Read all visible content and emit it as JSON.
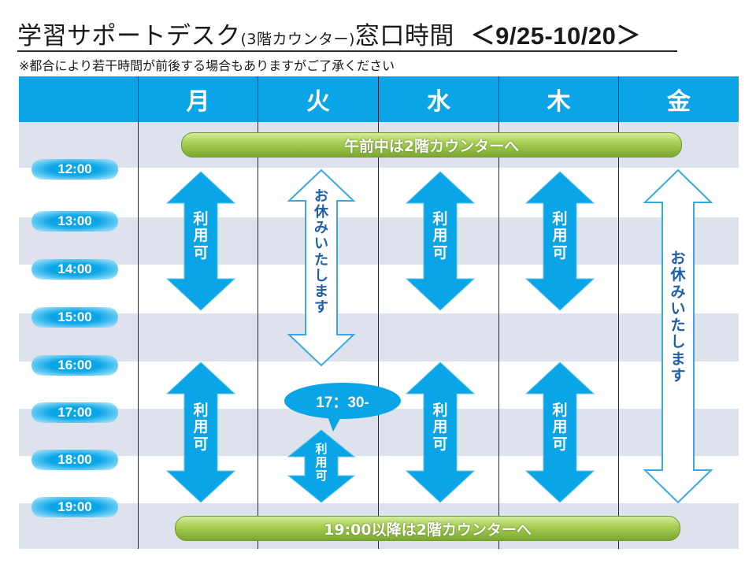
{
  "title": {
    "main": "学習サポートデスク",
    "paren": "(3階カウンター)",
    "suffix": "窓口時間",
    "range": "＜9/25-10/20＞"
  },
  "note": "※都合により若干時間が前後する場合もありますがご了承ください",
  "days": [
    "月",
    "火",
    "水",
    "木",
    "金"
  ],
  "times": [
    "12:00",
    "13:00",
    "14:00",
    "15:00",
    "16:00",
    "17:00",
    "18:00",
    "19:00"
  ],
  "banners": {
    "top": "午前中は2階カウンターへ",
    "bottom": "19:00以降は2階カウンターへ"
  },
  "blocks": {
    "available": "利用可",
    "closed": "お休みいたします"
  },
  "callout": "17：30-",
  "colors": {
    "header": "#0aa5e6",
    "arrow_fill": "#0aa5e6",
    "arrow_outline": "#3aa9e0",
    "banner": "#a9cf54",
    "stripe": "#dde2ec"
  }
}
